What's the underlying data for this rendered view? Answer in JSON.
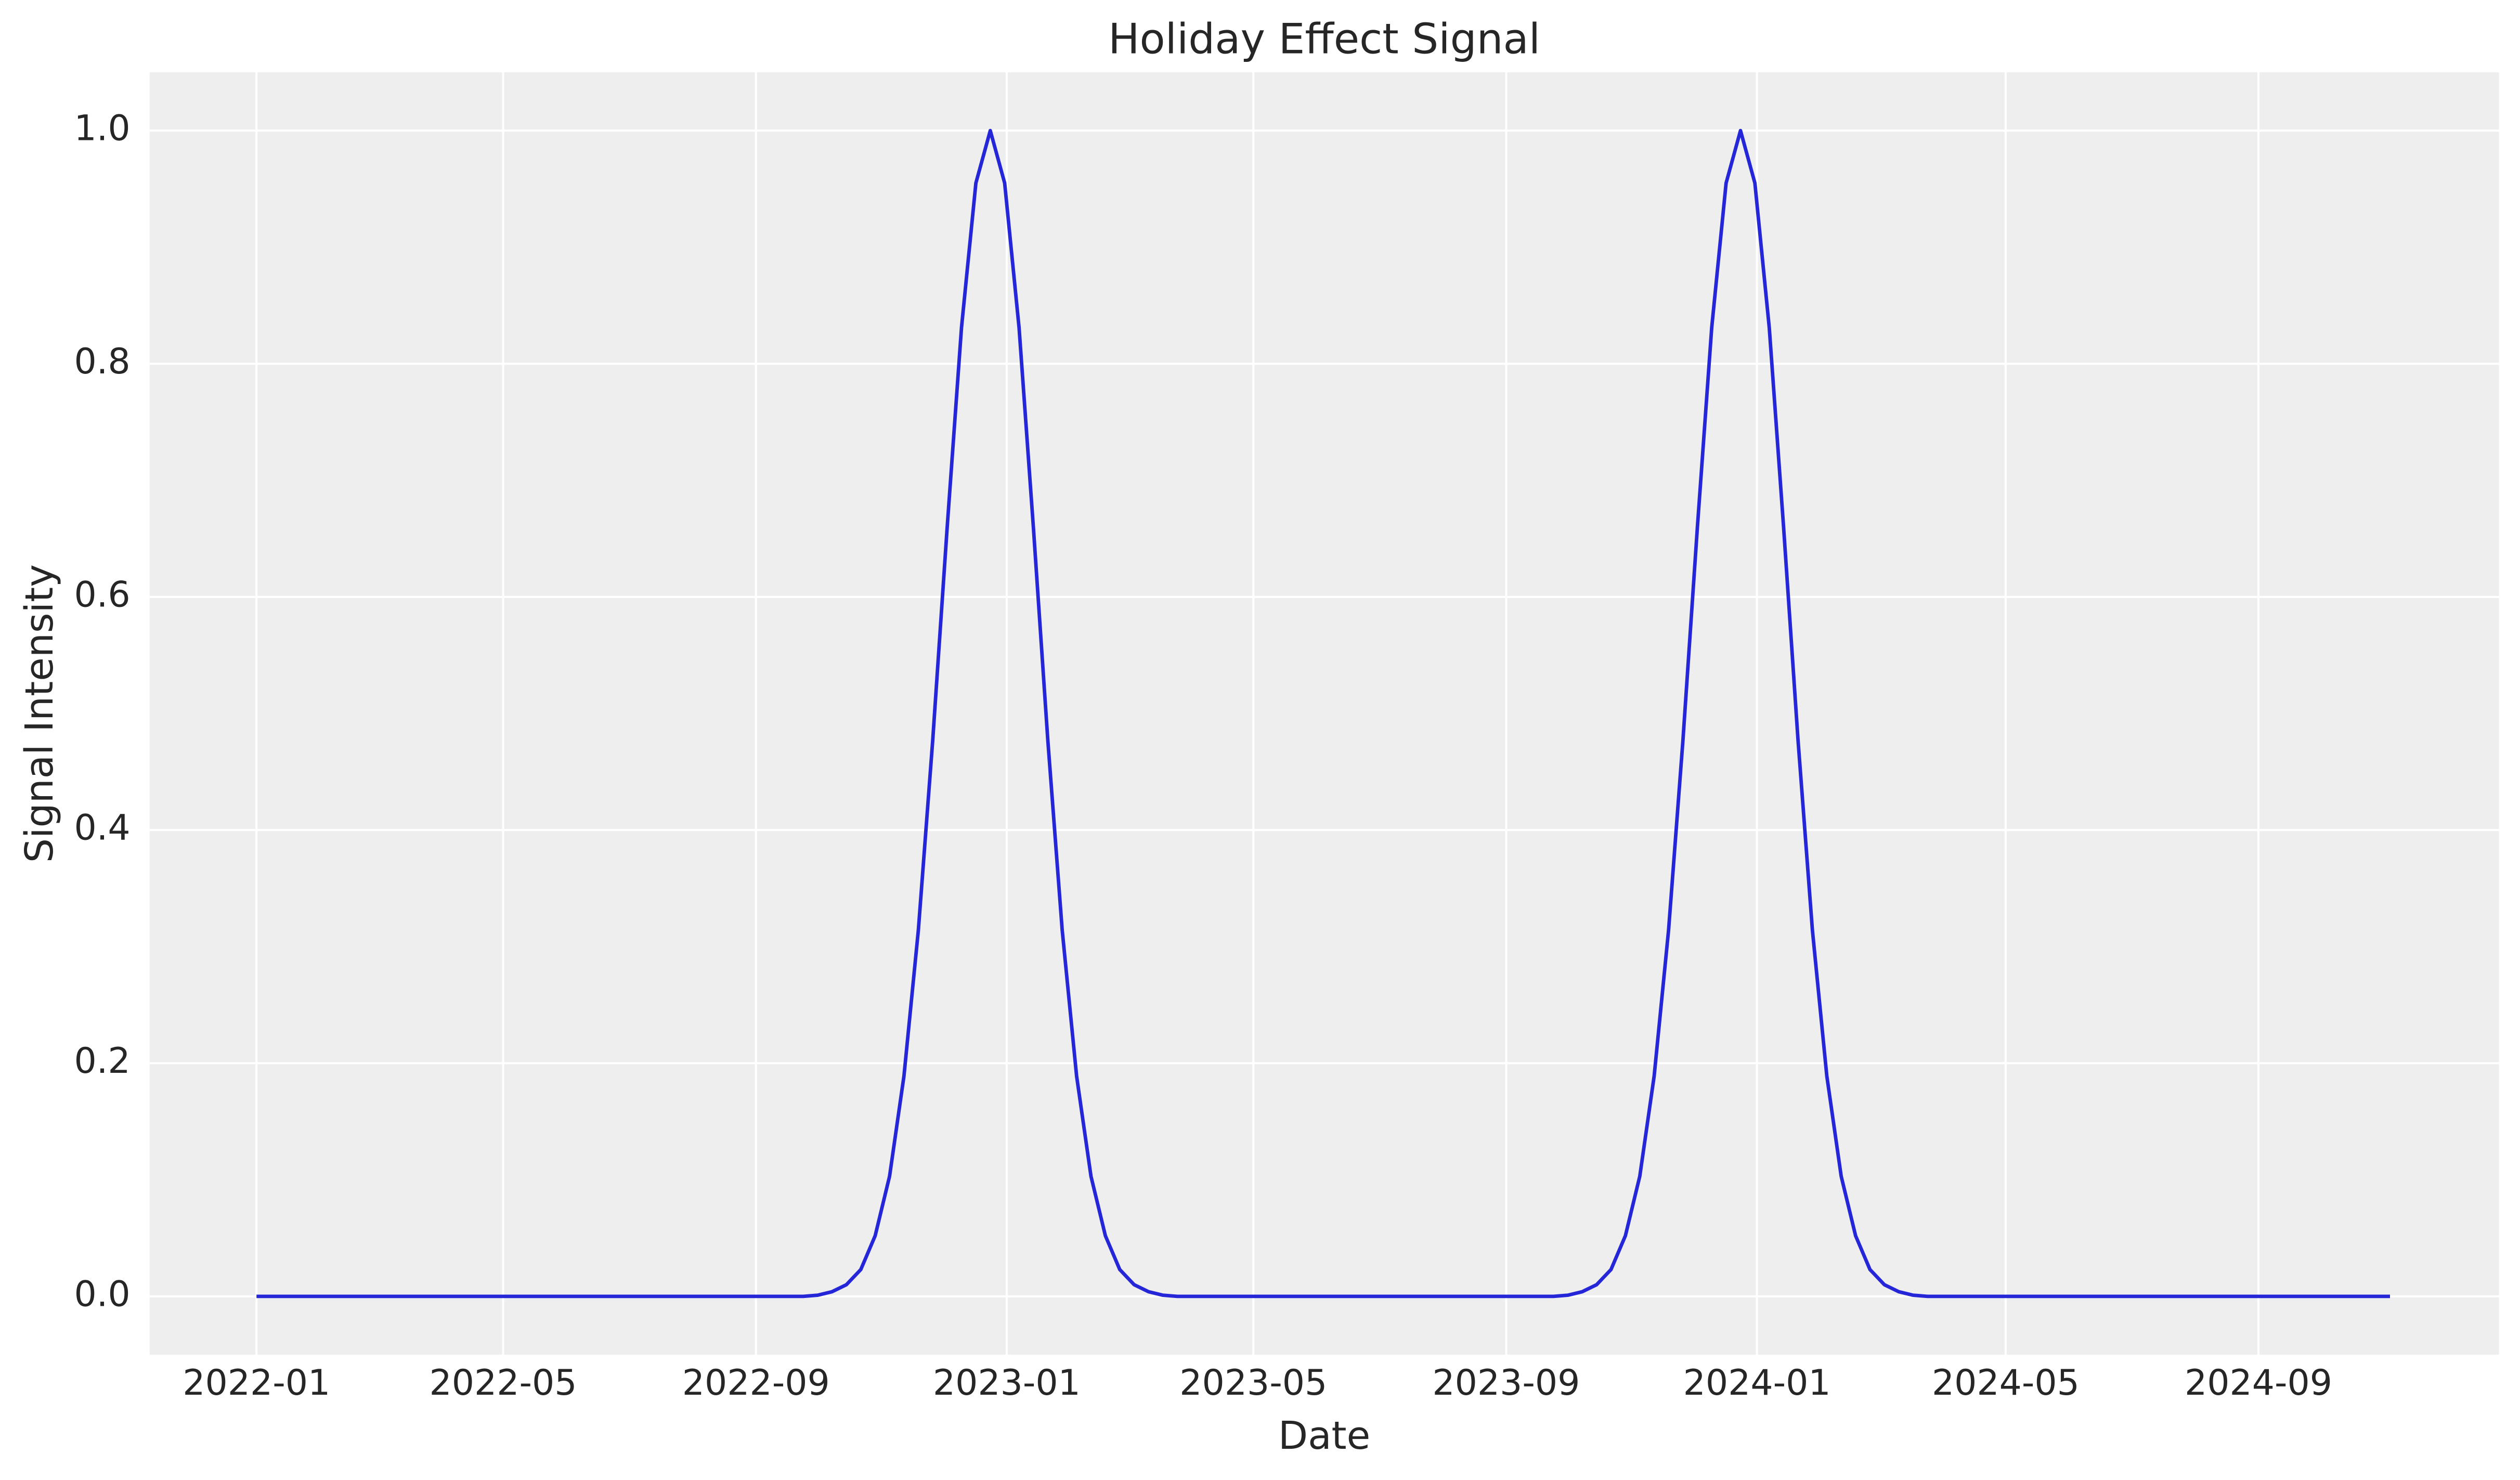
{
  "chart_data": {
    "type": "line",
    "title": "Holiday Effect Signal",
    "x_label": "Date",
    "y_label": "Signal Intensity",
    "x": [
      "2022-01-01",
      "2022-09-24",
      "2022-10-01",
      "2022-10-08",
      "2022-10-15",
      "2022-10-22",
      "2022-10-29",
      "2022-11-05",
      "2022-11-12",
      "2022-11-19",
      "2022-11-26",
      "2022-12-03",
      "2022-12-10",
      "2022-12-17",
      "2022-12-24",
      "2022-12-31",
      "2023-01-07",
      "2023-01-14",
      "2023-01-21",
      "2023-01-28",
      "2023-02-04",
      "2023-02-11",
      "2023-02-18",
      "2023-02-25",
      "2023-03-04",
      "2023-03-11",
      "2023-03-18",
      "2023-03-25",
      "2023-09-24",
      "2023-10-01",
      "2023-10-08",
      "2023-10-15",
      "2023-10-22",
      "2023-10-29",
      "2023-11-05",
      "2023-11-12",
      "2023-11-19",
      "2023-11-26",
      "2023-12-03",
      "2023-12-10",
      "2023-12-17",
      "2023-12-24",
      "2023-12-31",
      "2024-01-07",
      "2024-01-14",
      "2024-01-21",
      "2024-01-28",
      "2024-02-04",
      "2024-02-11",
      "2024-02-18",
      "2024-02-25",
      "2024-03-03",
      "2024-03-10",
      "2024-03-17",
      "2024-03-24",
      "2024-11-04"
    ],
    "series": [
      {
        "name": "Signal Intensity",
        "color": "#2626d9",
        "values": [
          0,
          0,
          0.001,
          0.004,
          0.01,
          0.023,
          0.052,
          0.103,
          0.189,
          0.314,
          0.477,
          0.659,
          0.831,
          0.955,
          1,
          0.955,
          0.831,
          0.659,
          0.477,
          0.314,
          0.189,
          0.103,
          0.052,
          0.023,
          0.01,
          0.004,
          0.001,
          0,
          0,
          0.001,
          0.004,
          0.01,
          0.023,
          0.052,
          0.103,
          0.189,
          0.314,
          0.477,
          0.659,
          0.831,
          0.955,
          1,
          0.955,
          0.831,
          0.659,
          0.477,
          0.314,
          0.189,
          0.103,
          0.052,
          0.023,
          0.01,
          0.004,
          0.001,
          0,
          0
        ]
      }
    ],
    "xlim": [
      "2021-11-10",
      "2024-12-27"
    ],
    "xticks": [
      "2022-01",
      "2022-05",
      "2022-09",
      "2023-01",
      "2023-05",
      "2023-09",
      "2024-01",
      "2024-05",
      "2024-09"
    ],
    "ylim": [
      -0.05,
      1.05
    ],
    "yticks": [
      {
        "value": 0,
        "label": "0.0"
      },
      0.2,
      0.4,
      0.6,
      0.8,
      {
        "value": 1,
        "label": "1.0"
      }
    ],
    "grid": true
  }
}
